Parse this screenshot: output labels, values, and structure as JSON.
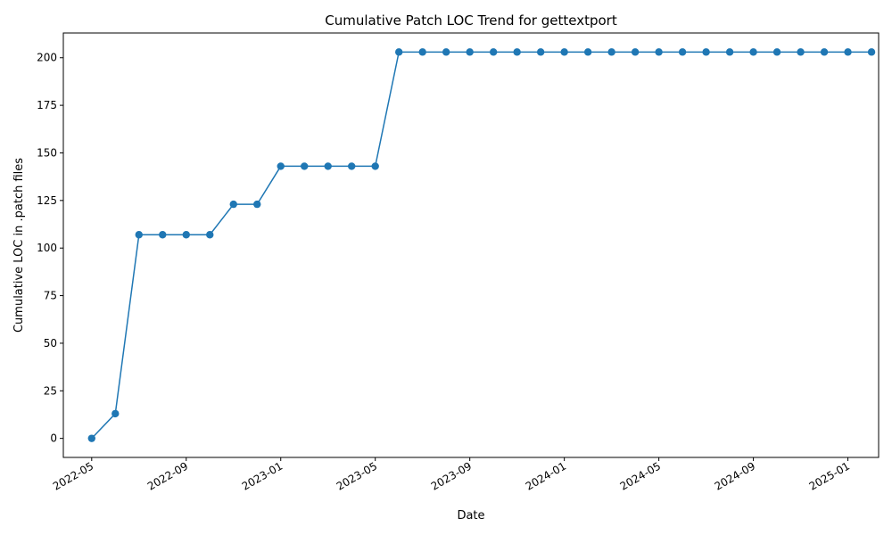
{
  "chart_data": {
    "type": "line",
    "title": "Cumulative Patch LOC Trend for gettextport",
    "xlabel": "Date",
    "ylabel": "Cumulative LOC in .patch files",
    "grid": false,
    "marker": "circle",
    "line_color": "#1f77b4",
    "x_ticks": [
      "2022-05",
      "2022-09",
      "2023-01",
      "2023-05",
      "2023-09",
      "2024-01",
      "2024-05",
      "2024-09",
      "2025-01"
    ],
    "y_ticks": [
      0,
      25,
      50,
      75,
      100,
      125,
      150,
      175,
      200
    ],
    "xlim": [
      "2022-04",
      "2025-02"
    ],
    "ylim": [
      -10,
      213
    ],
    "x": [
      "2022-05",
      "2022-06",
      "2022-07",
      "2022-08",
      "2022-09",
      "2022-10",
      "2022-11",
      "2022-12",
      "2023-01",
      "2023-02",
      "2023-03",
      "2023-04",
      "2023-05",
      "2023-06",
      "2023-07",
      "2023-08",
      "2023-09",
      "2023-10",
      "2023-11",
      "2023-12",
      "2024-01",
      "2024-02",
      "2024-03",
      "2024-04",
      "2024-05",
      "2024-06",
      "2024-07",
      "2024-08",
      "2024-09",
      "2024-10",
      "2024-11",
      "2024-12",
      "2025-01",
      "2025-02"
    ],
    "series": [
      {
        "values": [
          0,
          13,
          107,
          107,
          107,
          107,
          123,
          123,
          143,
          143,
          143,
          143,
          143,
          203,
          203,
          203,
          203,
          203,
          203,
          203,
          203,
          203,
          203,
          203,
          203,
          203,
          203,
          203,
          203,
          203,
          203,
          203,
          203,
          203
        ]
      }
    ]
  }
}
